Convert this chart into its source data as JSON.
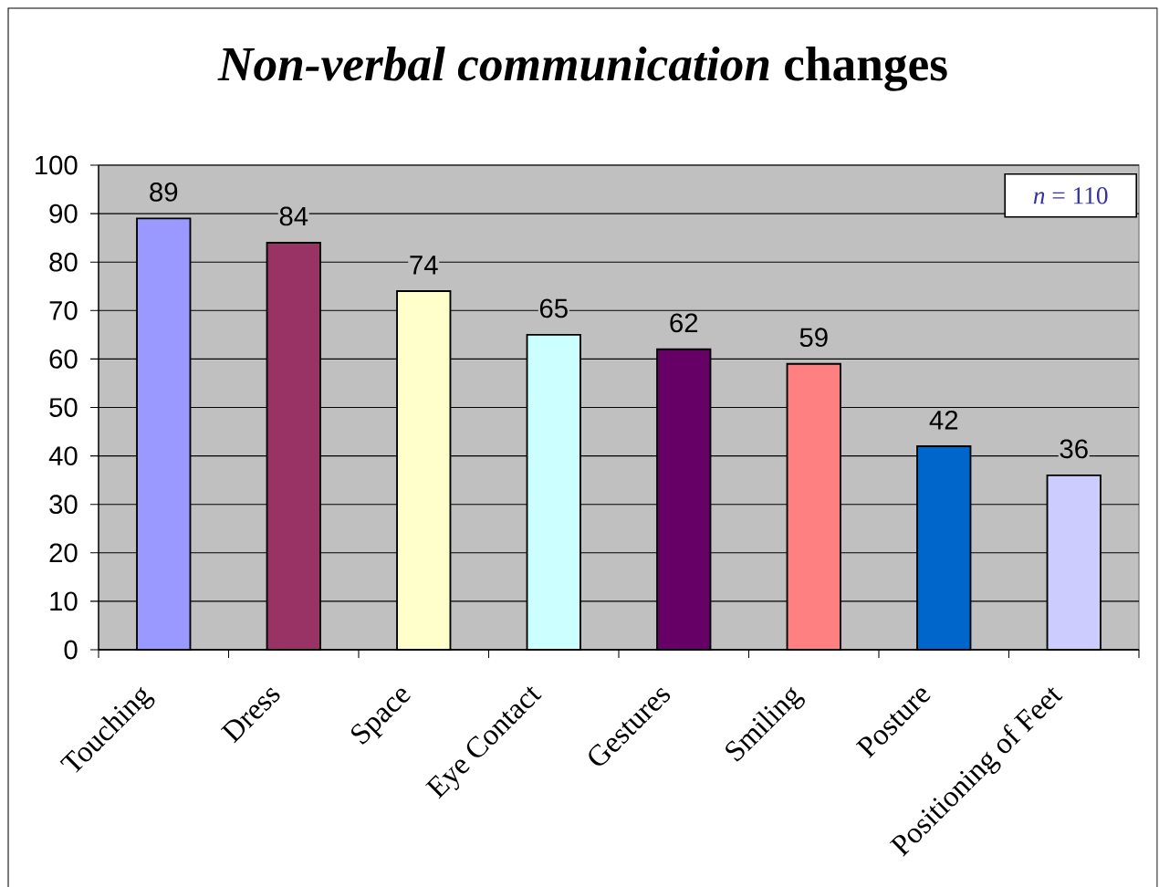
{
  "chart_data": {
    "type": "bar",
    "title": "*Non-verbal communication* changes",
    "categories": [
      "Touching",
      "Dress",
      "Space",
      "Eye Contact",
      "Gestures",
      "Smiling",
      "Posture",
      "Positioning of Feet"
    ],
    "values": [
      89,
      84,
      74,
      65,
      62,
      59,
      42,
      36
    ],
    "colors": [
      "#9999ff",
      "#993366",
      "#ffffcc",
      "#ccffff",
      "#660066",
      "#ff8080",
      "#0066cc",
      "#ccccff"
    ],
    "ylim": [
      0,
      100
    ],
    "yticks": [
      0,
      10,
      20,
      30,
      40,
      50,
      60,
      70,
      80,
      90,
      100
    ],
    "grid": "y",
    "data_labels": true,
    "annotations": [
      "*n* = 110"
    ]
  }
}
